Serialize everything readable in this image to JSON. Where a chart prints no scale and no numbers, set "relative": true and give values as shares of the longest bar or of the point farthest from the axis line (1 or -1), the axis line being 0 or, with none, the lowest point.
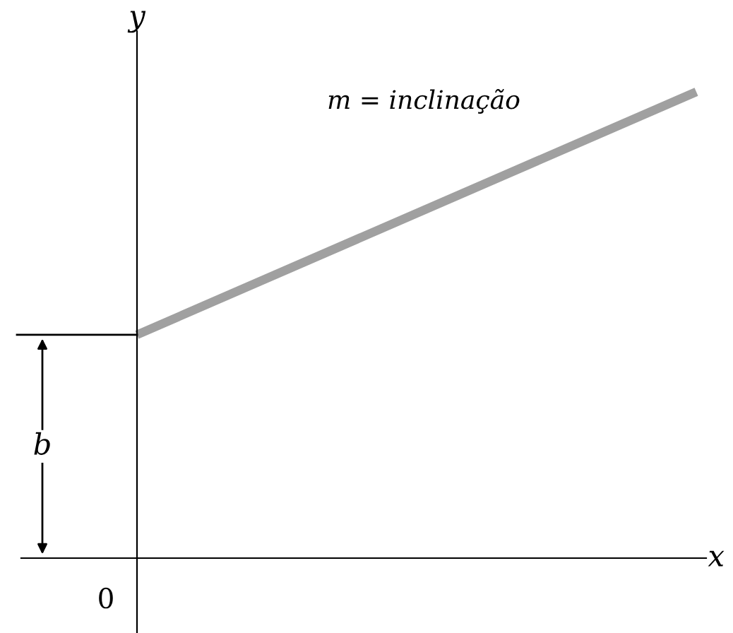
{
  "chart_data": {
    "type": "line",
    "relative": true,
    "xlabel": "x",
    "ylabel": "y",
    "categories": [
      null,
      null
    ],
    "series": [
      {
        "color": "#a0a0a0",
        "values": [
          0.479,
          1
        ]
      }
    ],
    "ref_lines": [
      {
        "axis": "y",
        "value": 0.479,
        "color": "#000000"
      }
    ],
    "annotations": [
      "m = inclinação",
      "b",
      "0"
    ],
    "legend": false,
    "marker": "none",
    "line_style": "solid"
  }
}
